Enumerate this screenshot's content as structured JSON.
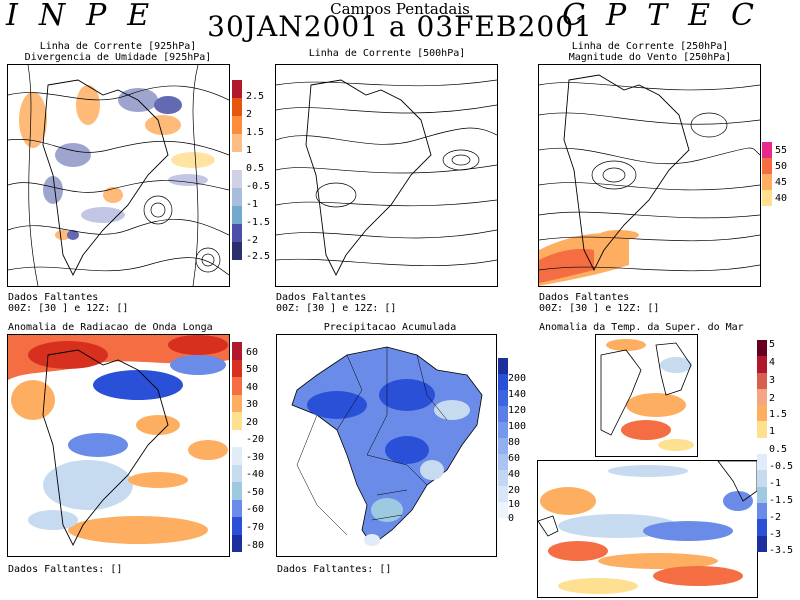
{
  "header": {
    "brand_left": "INPE",
    "brand_right": "CPTEC",
    "subtitle": "Campos Pentadais",
    "title": "30JAN2001 a 03FEB2001"
  },
  "panels": {
    "p925": {
      "title_line1": "Linha de Corrente [925hPa]",
      "title_line2": "Divergencia de Umidade [925hPa]",
      "missing_label": "Dados Faltantes",
      "missing_line": "00Z: [30 ] e 12Z: []",
      "legend": [
        "2.5",
        "2",
        "1.5",
        "1",
        "0.5",
        "-0.5",
        "-1",
        "-1.5",
        "-2",
        "-2.5"
      ]
    },
    "p500": {
      "title_line1": "Linha de Corrente [500hPa]",
      "missing_label": "Dados Faltantes",
      "missing_line": "00Z: [30 ] e 12Z: []"
    },
    "p250": {
      "title_line1": "Linha de Corrente [250hPa]",
      "title_line2": "Magnitude do Vento [250hPa]",
      "missing_label": "Dados Faltantes",
      "missing_line": "00Z: [30 ] e 12Z: []",
      "legend": [
        "55",
        "50",
        "45",
        "40"
      ]
    },
    "olr": {
      "title": "Anomalia de Radiacao de Onda Longa",
      "missing_line": "Dados Faltantes: []",
      "legend": [
        "60",
        "50",
        "40",
        "30",
        "20",
        "-20",
        "-30",
        "-40",
        "-50",
        "-60",
        "-70",
        "-80"
      ]
    },
    "precip": {
      "title": "Precipitacao Acumulada",
      "missing_line": "Dados Faltantes: []",
      "legend": [
        "200",
        "140",
        "120",
        "100",
        "80",
        "60",
        "40",
        "20",
        "10",
        "0"
      ]
    },
    "sst": {
      "title": "Anomalia da Temp. da Super. do Mar",
      "legend": [
        "5",
        "4",
        "3",
        "2",
        "1.5",
        "1",
        "0.5",
        "-0.5",
        "-1",
        "-1.5",
        "-2",
        "-3",
        "-3.5"
      ]
    }
  },
  "colors": {
    "red": "#d7301f",
    "orange": "#f46d43",
    "yellow": "#fdae61",
    "pale": "#fee090",
    "lightblue": "#c6dbef",
    "blue": "#6a8ce8",
    "deepblue": "#2b50d8",
    "navy": "#3a3f8f"
  }
}
